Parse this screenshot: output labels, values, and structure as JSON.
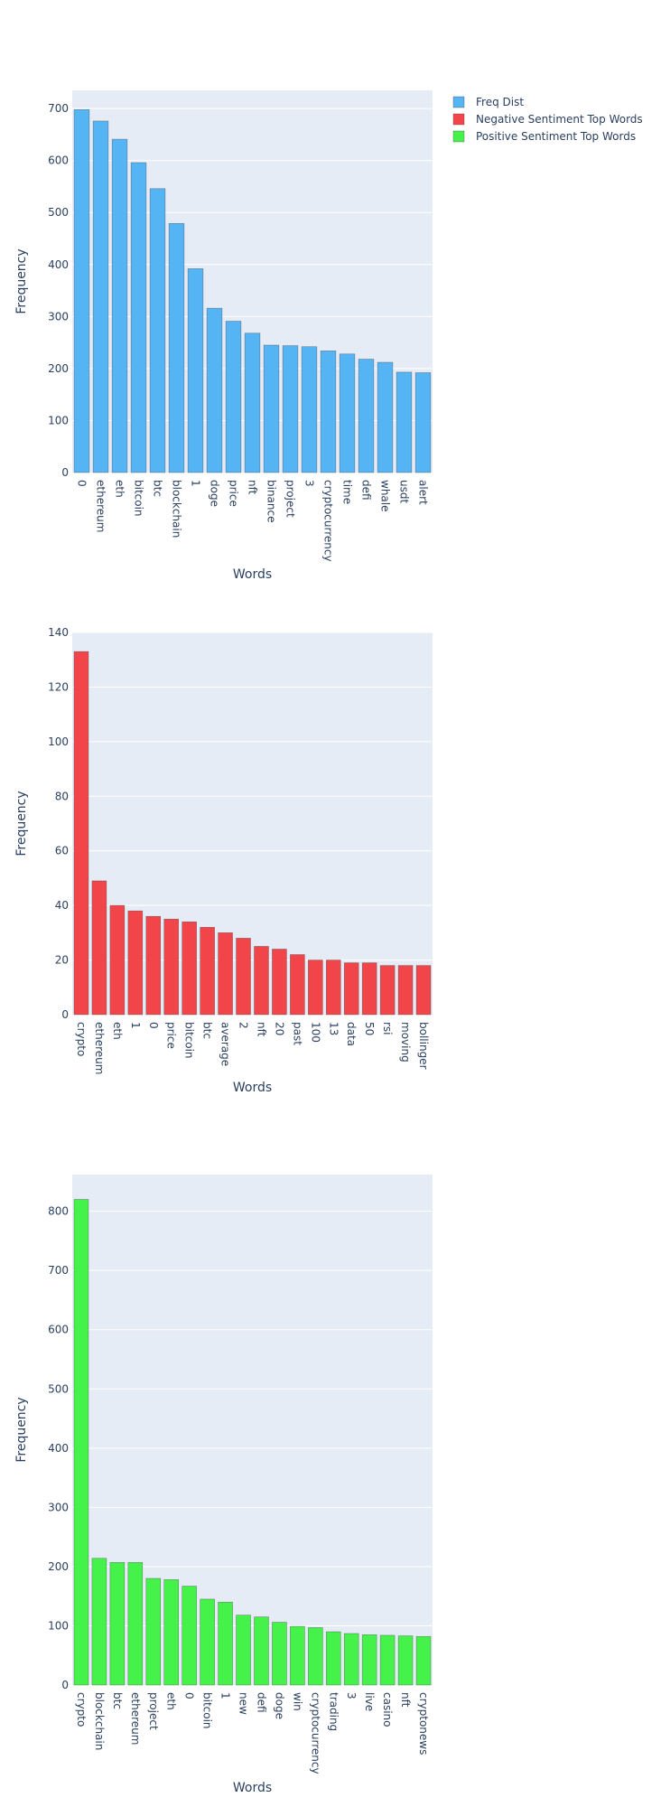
{
  "legend": [
    {
      "label": "Freq Dist",
      "color": "#55b4f4"
    },
    {
      "label": "Negative Sentiment Top Words",
      "color": "#f2454a"
    },
    {
      "label": "Positive Sentiment Top Words",
      "color": "#45f24a"
    }
  ],
  "chart_data": [
    {
      "type": "bar",
      "series_name": "Freq Dist",
      "color": "#55b4f4",
      "xlabel": "Words",
      "ylabel": "Frequency",
      "ylim": [
        0,
        735
      ],
      "yticks": [
        0,
        100,
        200,
        300,
        400,
        500,
        600,
        700
      ],
      "categories": [
        "0",
        "ethereum",
        "eth",
        "bitcoin",
        "btc",
        "blockchain",
        "1",
        "doge",
        "price",
        "nft",
        "binance",
        "project",
        "3",
        "cryptocurrency",
        "time",
        "defi",
        "whale",
        "usdt",
        "alert"
      ],
      "values": [
        698,
        676,
        641,
        596,
        546,
        479,
        392,
        316,
        291,
        268,
        245,
        244,
        242,
        234,
        228,
        218,
        212,
        193,
        192
      ]
    },
    {
      "type": "bar",
      "series_name": "Negative Sentiment Top Words",
      "color": "#f2454a",
      "xlabel": "Words",
      "ylabel": "Frequency",
      "ylim": [
        0,
        140
      ],
      "yticks": [
        0,
        20,
        40,
        60,
        80,
        100,
        120,
        140
      ],
      "categories": [
        "crypto",
        "ethereum",
        "eth",
        "1",
        "0",
        "price",
        "bitcoin",
        "btc",
        "average",
        "2",
        "nft",
        "20",
        "past",
        "100",
        "13",
        "data",
        "50",
        "rsi",
        "moving",
        "bollinger"
      ],
      "values": [
        133,
        49,
        40,
        38,
        36,
        35,
        34,
        32,
        30,
        28,
        25,
        24,
        22,
        20,
        20,
        19,
        19,
        18,
        18,
        18
      ]
    },
    {
      "type": "bar",
      "series_name": "Positive Sentiment Top Words",
      "color": "#45f24a",
      "xlabel": "Words",
      "ylabel": "Frequency",
      "ylim": [
        0,
        862
      ],
      "yticks": [
        0,
        100,
        200,
        300,
        400,
        500,
        600,
        700,
        800
      ],
      "categories": [
        "crypto",
        "blockchain",
        "btc",
        "ethereum",
        "project",
        "eth",
        "0",
        "bitcoin",
        "1",
        "new",
        "defi",
        "doge",
        "win",
        "cryptocurrency",
        "trading",
        "3",
        "live",
        "casino",
        "nft",
        "cryptonews"
      ],
      "values": [
        820,
        214,
        207,
        207,
        180,
        178,
        167,
        145,
        140,
        118,
        115,
        106,
        99,
        97,
        90,
        87,
        85,
        84,
        83,
        82
      ]
    }
  ]
}
